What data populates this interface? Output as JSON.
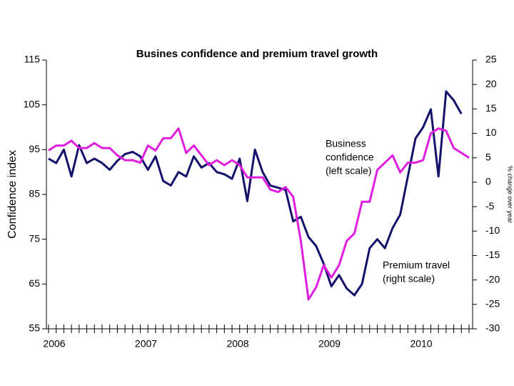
{
  "chart_data": {
    "type": "line",
    "title": "Busines confidence and premium travel growth",
    "ylabel": "Confidence index",
    "y2label": "% change over year",
    "annotations": [
      [
        "Business",
        "confidence",
        "(left scale)"
      ],
      [
        "Premium travel",
        "(right scale)"
      ]
    ],
    "categories": [
      "2006",
      null,
      null,
      null,
      null,
      null,
      null,
      null,
      null,
      null,
      null,
      null,
      "2007",
      null,
      null,
      null,
      null,
      null,
      null,
      null,
      null,
      null,
      null,
      null,
      "2008",
      null,
      null,
      null,
      null,
      null,
      null,
      null,
      null,
      null,
      null,
      null,
      "2009",
      null,
      null,
      null,
      null,
      null,
      null,
      null,
      null,
      null,
      null,
      null,
      "2010",
      null,
      null,
      null,
      null,
      null,
      null,
      null
    ],
    "series": [
      {
        "name": "Business confidence",
        "color": "#14136b",
        "axis": "y",
        "values": [
          93,
          92,
          95,
          89,
          96,
          92,
          93,
          92,
          90.5,
          92.5,
          94,
          94.5,
          93.5,
          90.5,
          93.5,
          88,
          87,
          90,
          89,
          93.5,
          91,
          92,
          90,
          89.5,
          88.5,
          93,
          83.5,
          95,
          90,
          87,
          86.5,
          86,
          79,
          80,
          75.5,
          73.5,
          69.5,
          64.5,
          67,
          64,
          62.5,
          65,
          73,
          75,
          73,
          77.5,
          80.5,
          89,
          97.5,
          100,
          104,
          89,
          108,
          106,
          103,
          null
        ]
      },
      {
        "name": "Premium travel",
        "color": "#e01ee0",
        "axis": "y2",
        "values": [
          6.5,
          7.5,
          7.5,
          8.5,
          7,
          7,
          8,
          7,
          7,
          5.5,
          4.5,
          4.5,
          4,
          7.5,
          6.5,
          9,
          9,
          11,
          6,
          7.5,
          5.5,
          3.5,
          4.5,
          3.5,
          4.5,
          3.5,
          1,
          1,
          1,
          -1.5,
          -2,
          -1,
          -3,
          -12,
          -24,
          -21.5,
          -17,
          -19.5,
          -17,
          -12,
          -10.5,
          -4,
          -4,
          2.5,
          4,
          5.5,
          2,
          4,
          4,
          4.5,
          10,
          11,
          10.5,
          7,
          6,
          5
        ]
      }
    ],
    "ylim": [
      55,
      115
    ],
    "yticks": [
      55,
      65,
      75,
      85,
      95,
      105,
      115
    ],
    "y2lim": [
      -30,
      25
    ],
    "y2ticks": [
      -30,
      -25,
      -20,
      -15,
      -10,
      -5,
      0,
      5,
      10,
      15,
      20,
      25
    ],
    "grid": false
  }
}
